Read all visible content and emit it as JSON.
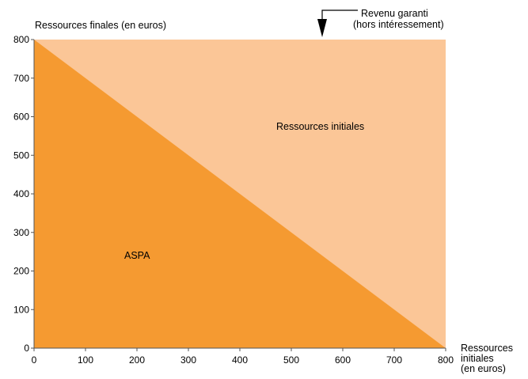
{
  "colors": {
    "aspa": "#f59a31",
    "ressources_initiales": "#fbc697",
    "axis": "#555555",
    "text": "#000000"
  },
  "chart_data": {
    "type": "area",
    "title": "",
    "ylabel": "Ressources finales (en euros)",
    "xlabel_lines": [
      "Ressources",
      "initiales",
      "(en euros)"
    ],
    "xlim": [
      0,
      800
    ],
    "ylim": [
      0,
      800
    ],
    "x_ticks": [
      0,
      100,
      200,
      300,
      400,
      500,
      600,
      700,
      800
    ],
    "y_ticks": [
      0,
      100,
      200,
      300,
      400,
      500,
      600,
      700,
      800
    ],
    "x_tick_labels": [
      "0",
      "100",
      "200",
      "300",
      "400",
      "500",
      "600",
      "700",
      "800"
    ],
    "y_tick_labels": [
      "0",
      "100",
      "200",
      "300",
      "400",
      "500",
      "600",
      "700",
      "800"
    ],
    "grid": false,
    "series": [
      {
        "name": "ASPA",
        "x": [
          0,
          800
        ],
        "y": [
          800,
          0
        ]
      },
      {
        "name": "Ressources initiales",
        "x": [
          0,
          800
        ],
        "y": [
          0,
          800
        ]
      }
    ],
    "total_level": 800,
    "annotations": {
      "guarantee_lines": [
        "Revenu garanti",
        "(hors intéressement)"
      ],
      "guarantee_x": 560
    }
  }
}
